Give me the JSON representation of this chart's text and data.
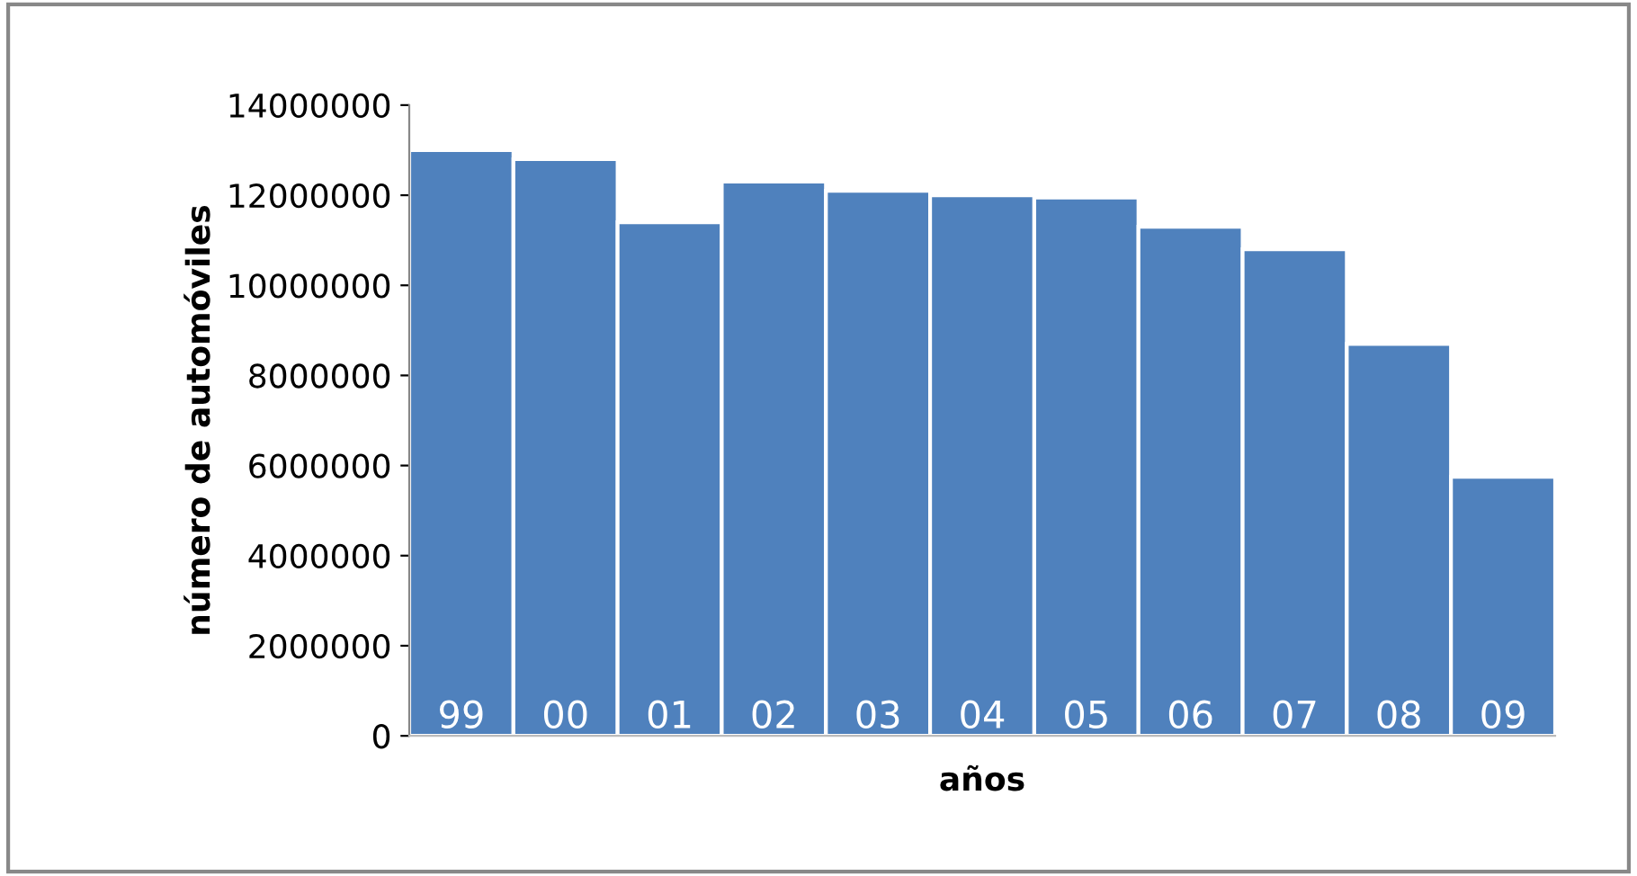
{
  "chart_data": {
    "type": "bar",
    "xlabel": "años",
    "ylabel": "número de automóviles",
    "categories": [
      "99",
      "00",
      "01",
      "02",
      "03",
      "04",
      "05",
      "06",
      "07",
      "08",
      "09"
    ],
    "values": [
      13000000,
      12800000,
      11400000,
      12300000,
      12100000,
      12000000,
      11950000,
      11300000,
      10800000,
      8700000,
      5750000
    ],
    "color": "#4f81bd",
    "ylim": [
      0,
      14000000
    ],
    "yticks": [
      0,
      2000000,
      4000000,
      6000000,
      8000000,
      10000000,
      12000000,
      14000000
    ],
    "grid": false,
    "legend": false
  }
}
